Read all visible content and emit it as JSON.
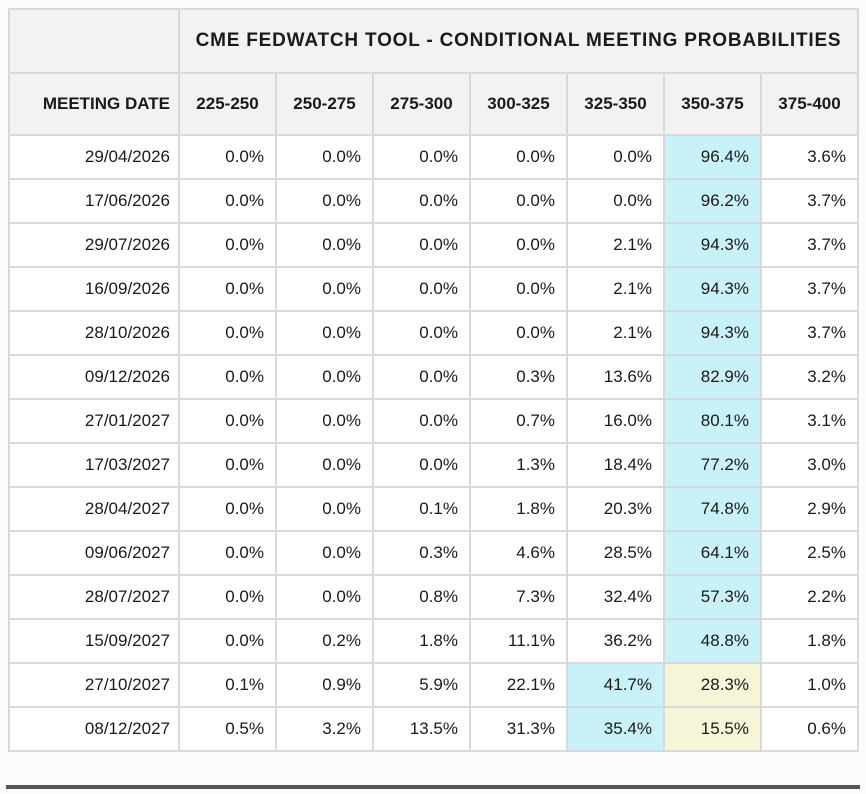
{
  "table": {
    "title": "CME FEDWATCH TOOL - CONDITIONAL MEETING PROBABILITIES",
    "date_column_header": "MEETING DATE",
    "rate_column_headers": [
      "225-250",
      "250-275",
      "275-300",
      "300-325",
      "325-350",
      "350-375",
      "375-400"
    ],
    "highlight_colors": {
      "primary_cyan": "#c8f1f8",
      "secondary_yellow": "#f6f5d7"
    },
    "rows": [
      {
        "date": "29/04/2026",
        "values": [
          "0.0%",
          "0.0%",
          "0.0%",
          "0.0%",
          "0.0%",
          "96.4%",
          "3.6%"
        ],
        "cyan": 5,
        "yellow": null
      },
      {
        "date": "17/06/2026",
        "values": [
          "0.0%",
          "0.0%",
          "0.0%",
          "0.0%",
          "0.0%",
          "96.2%",
          "3.7%"
        ],
        "cyan": 5,
        "yellow": null
      },
      {
        "date": "29/07/2026",
        "values": [
          "0.0%",
          "0.0%",
          "0.0%",
          "0.0%",
          "2.1%",
          "94.3%",
          "3.7%"
        ],
        "cyan": 5,
        "yellow": null
      },
      {
        "date": "16/09/2026",
        "values": [
          "0.0%",
          "0.0%",
          "0.0%",
          "0.0%",
          "2.1%",
          "94.3%",
          "3.7%"
        ],
        "cyan": 5,
        "yellow": null
      },
      {
        "date": "28/10/2026",
        "values": [
          "0.0%",
          "0.0%",
          "0.0%",
          "0.0%",
          "2.1%",
          "94.3%",
          "3.7%"
        ],
        "cyan": 5,
        "yellow": null
      },
      {
        "date": "09/12/2026",
        "values": [
          "0.0%",
          "0.0%",
          "0.0%",
          "0.3%",
          "13.6%",
          "82.9%",
          "3.2%"
        ],
        "cyan": 5,
        "yellow": null
      },
      {
        "date": "27/01/2027",
        "values": [
          "0.0%",
          "0.0%",
          "0.0%",
          "0.7%",
          "16.0%",
          "80.1%",
          "3.1%"
        ],
        "cyan": 5,
        "yellow": null
      },
      {
        "date": "17/03/2027",
        "values": [
          "0.0%",
          "0.0%",
          "0.0%",
          "1.3%",
          "18.4%",
          "77.2%",
          "3.0%"
        ],
        "cyan": 5,
        "yellow": null
      },
      {
        "date": "28/04/2027",
        "values": [
          "0.0%",
          "0.0%",
          "0.1%",
          "1.8%",
          "20.3%",
          "74.8%",
          "2.9%"
        ],
        "cyan": 5,
        "yellow": null
      },
      {
        "date": "09/06/2027",
        "values": [
          "0.0%",
          "0.0%",
          "0.3%",
          "4.6%",
          "28.5%",
          "64.1%",
          "2.5%"
        ],
        "cyan": 5,
        "yellow": null
      },
      {
        "date": "28/07/2027",
        "values": [
          "0.0%",
          "0.0%",
          "0.8%",
          "7.3%",
          "32.4%",
          "57.3%",
          "2.2%"
        ],
        "cyan": 5,
        "yellow": null
      },
      {
        "date": "15/09/2027",
        "values": [
          "0.0%",
          "0.2%",
          "1.8%",
          "11.1%",
          "36.2%",
          "48.8%",
          "1.8%"
        ],
        "cyan": 5,
        "yellow": null
      },
      {
        "date": "27/10/2027",
        "values": [
          "0.1%",
          "0.9%",
          "5.9%",
          "22.1%",
          "41.7%",
          "28.3%",
          "1.0%"
        ],
        "cyan": 4,
        "yellow": 5
      },
      {
        "date": "08/12/2027",
        "values": [
          "0.5%",
          "3.2%",
          "13.5%",
          "31.3%",
          "35.4%",
          "15.5%",
          "0.6%"
        ],
        "cyan": 4,
        "yellow": 5
      }
    ]
  }
}
